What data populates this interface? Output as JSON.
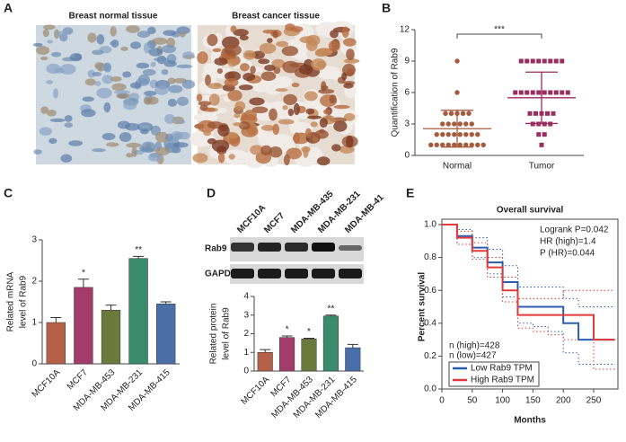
{
  "images": {
    "panel": "A",
    "titles": [
      "Breast normal tissue",
      "Breast cancer tissue"
    ]
  },
  "blot": {
    "lanes": [
      "MCF10A",
      "MCF7",
      "MDA-MB-435",
      "MDA-MB-231",
      "MDA-MB-41"
    ],
    "rows": [
      "Rab9",
      "GAPDH"
    ]
  },
  "chart_data": [
    {
      "panel": "B",
      "type": "strip",
      "ylabel": "Quantification of Rab9",
      "categories": [
        "Normal",
        "Tumor"
      ],
      "ylim": [
        0,
        12
      ],
      "yticks": [
        0,
        3,
        6,
        9,
        12
      ],
      "significance": "***",
      "groups": [
        {
          "color": "#a55a3c",
          "marker": "circle",
          "mean": 2.55,
          "error": 1.75,
          "values": [
            9,
            6,
            4,
            4,
            4,
            4,
            4,
            3,
            3,
            3,
            3,
            3,
            3,
            2,
            2,
            2,
            2,
            2,
            2,
            2,
            2,
            1,
            1,
            1,
            1,
            1,
            1,
            1,
            1,
            1,
            1
          ]
        },
        {
          "color": "#9b2d5e",
          "marker": "square",
          "mean": 5.5,
          "error": 2.45,
          "values": [
            9,
            9,
            9,
            9,
            9,
            9,
            9,
            9,
            6,
            6,
            6,
            6,
            6,
            6,
            6,
            6,
            6,
            6,
            4,
            4,
            4,
            4,
            4,
            3,
            3,
            3,
            3,
            2,
            2,
            1
          ]
        }
      ]
    },
    {
      "panel": "C",
      "type": "bar",
      "ylabel": [
        "Related mRNA",
        "level of Rab9"
      ],
      "categories": [
        "MCF10A",
        "MCF7",
        "MDA-MB-453",
        "MDA-MB-231",
        "MDA-MB-415"
      ],
      "values": [
        1.0,
        1.85,
        1.3,
        2.55,
        1.45
      ],
      "errors": [
        0.12,
        0.2,
        0.12,
        0.05,
        0.05
      ],
      "colors": [
        "#b5614a",
        "#a43c6a",
        "#6b7a3c",
        "#3a8a6e",
        "#4a6fa8"
      ],
      "ylim": [
        0,
        3
      ],
      "yticks": [
        0,
        1,
        2,
        3
      ],
      "annotations": [
        {
          "index": 1,
          "text": "*"
        },
        {
          "index": 3,
          "text": "**"
        }
      ]
    },
    {
      "panel": "D",
      "type": "bar",
      "ylabel": [
        "Related protein",
        "level of Rab9"
      ],
      "categories": [
        "MCF10A",
        "MCF7",
        "MDA-MB-453",
        "MDA-MB-231",
        "MDA-MB-415"
      ],
      "values": [
        1.0,
        1.8,
        1.72,
        2.95,
        1.25
      ],
      "errors": [
        0.15,
        0.08,
        0.04,
        0.05,
        0.18
      ],
      "colors": [
        "#b5614a",
        "#a43c6a",
        "#6b7a3c",
        "#3a8a6e",
        "#4a6fa8"
      ],
      "ylim": [
        0,
        4
      ],
      "yticks": [
        0,
        1,
        2,
        3,
        4
      ],
      "annotations": [
        {
          "index": 1,
          "text": "*"
        },
        {
          "index": 2,
          "text": "*"
        },
        {
          "index": 3,
          "text": "**"
        }
      ]
    },
    {
      "panel": "E",
      "type": "survival",
      "title": "Overall survival",
      "xlabel": "Months",
      "ylabel": "Percent survival",
      "xlim": [
        0,
        290
      ],
      "xticks": [
        0,
        50,
        100,
        150,
        200,
        250
      ],
      "ylim": [
        0,
        1
      ],
      "yticks": [
        {
          "value": 0,
          "label": "0.0"
        },
        {
          "value": 0.2,
          "label": "0.2"
        },
        {
          "value": 0.4,
          "label": "0.4"
        },
        {
          "value": 0.6,
          "label": "0.6"
        },
        {
          "value": 0.8,
          "label": "0.8"
        },
        {
          "value": 1,
          "label": "1.0"
        }
      ],
      "legend": "lower left",
      "annotations": [
        "Logrank P=0.042",
        "HR (high)=1.4",
        "P (HR)=0.044"
      ],
      "counts": [
        "n (high)=428",
        "n (low)=427"
      ],
      "x": [
        0,
        25,
        50,
        75,
        100,
        125,
        150,
        175,
        200,
        225,
        250,
        285
      ],
      "series": [
        {
          "name": "Low Rab9 TPM",
          "color": "#2a5db0",
          "values": [
            1,
            0.93,
            0.86,
            0.77,
            0.65,
            0.5,
            0.5,
            0.5,
            0.4,
            0.3,
            0.3,
            0.3
          ],
          "ci_low": [
            1,
            0.88,
            0.8,
            0.7,
            0.56,
            0.4,
            0.38,
            0.35,
            0.22,
            0.15,
            0.15,
            0.15
          ],
          "ci_high": [
            1,
            0.97,
            0.92,
            0.85,
            0.75,
            0.62,
            0.62,
            0.62,
            0.55,
            0.5,
            0.5,
            0.5
          ]
        },
        {
          "name": "High Rab9 TPM",
          "color": "#e03a3a",
          "values": [
            1,
            0.92,
            0.84,
            0.74,
            0.6,
            0.45,
            0.45,
            0.45,
            0.45,
            0.45,
            0.3,
            0.3
          ],
          "ci_low": [
            1,
            0.88,
            0.79,
            0.68,
            0.53,
            0.37,
            0.35,
            0.33,
            0.3,
            0.3,
            0.12,
            0.12
          ],
          "ci_high": [
            1,
            0.96,
            0.89,
            0.8,
            0.68,
            0.55,
            0.55,
            0.55,
            0.6,
            0.6,
            0.6,
            0.6
          ]
        }
      ]
    }
  ]
}
